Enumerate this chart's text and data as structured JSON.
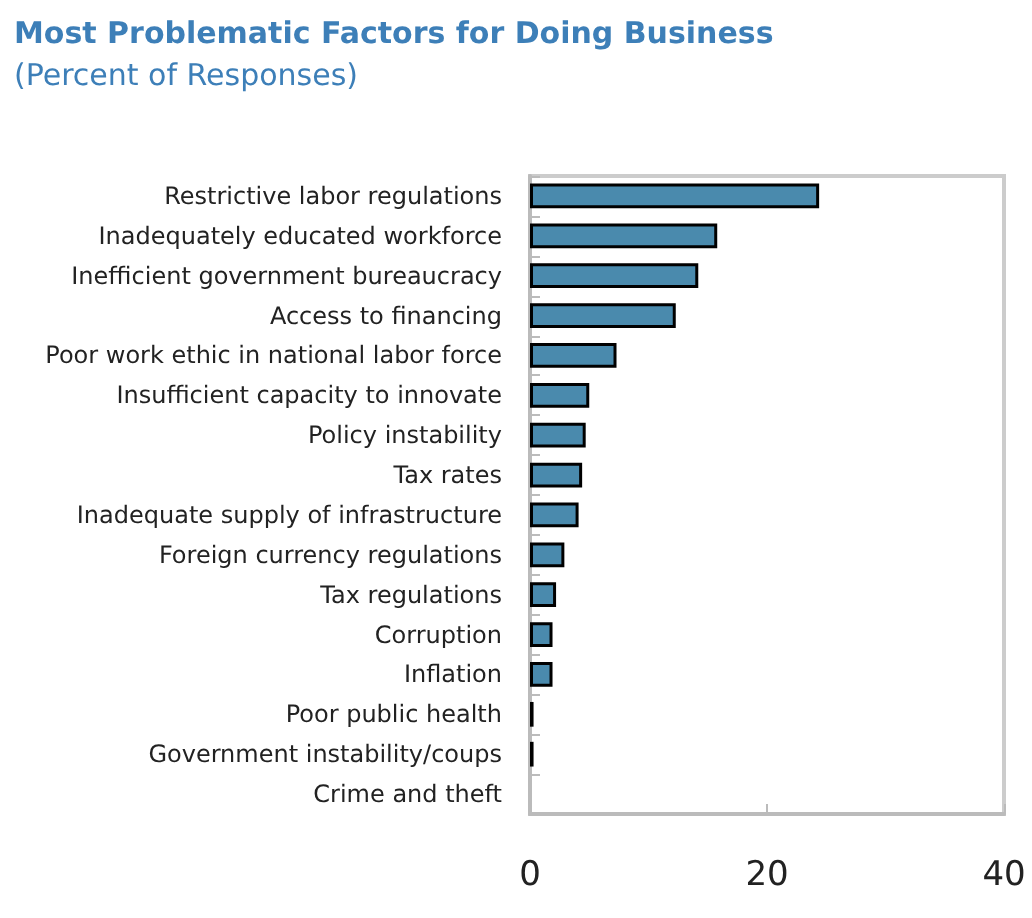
{
  "chart_data": {
    "type": "bar",
    "orientation": "horizontal",
    "title": "Most Problematic Factors for Doing Business",
    "subtitle": "(Percent of Responses)",
    "categories": [
      "Restrictive labor regulations",
      "Inadequately educated workforce",
      "Inefficient government bureaucracy",
      "Access to financing",
      "Poor work ethic in national labor force",
      "Insufficient capacity to innovate",
      "Policy instability",
      "Tax rates",
      "Inadequate supply of infrastructure",
      "Foreign currency regulations",
      "Tax regulations",
      "Corruption",
      "Inflation",
      "Poor public health",
      "Government instability/coups",
      "Crime and theft"
    ],
    "values": [
      24.4,
      15.8,
      14.2,
      12.3,
      7.3,
      5.0,
      4.7,
      4.4,
      4.1,
      2.9,
      2.2,
      1.9,
      1.9,
      0.3,
      0.3,
      0
    ],
    "color": "#4a8aad",
    "xlim": [
      0,
      40
    ],
    "xticks": [
      0,
      20,
      40
    ],
    "grid": false
  }
}
